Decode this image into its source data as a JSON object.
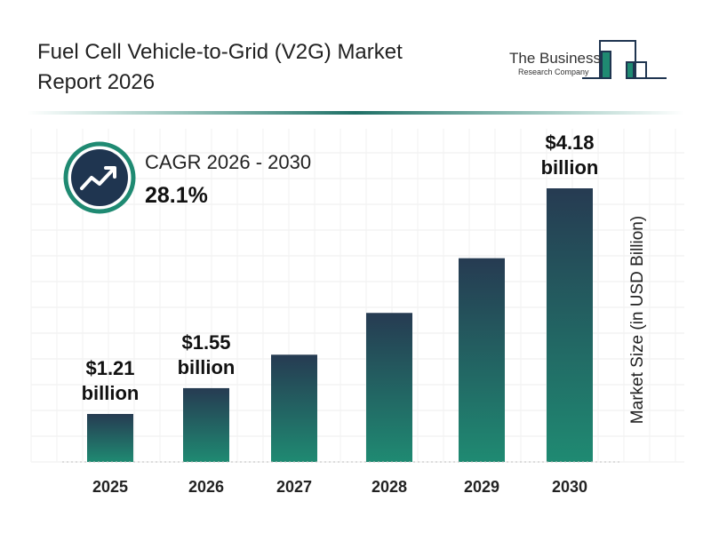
{
  "header": {
    "title_line1": "Fuel Cell Vehicle-to-Grid (V2G) Market",
    "title_line2": "Report 2026"
  },
  "logo": {
    "line1": "The Business",
    "line2": "Research Company"
  },
  "cagr": {
    "label": "CAGR 2026 - 2030",
    "value": "28.1%",
    "icon": "trending-up-icon"
  },
  "colors": {
    "bar_top": "#263b52",
    "bar_bottom": "#1f8a72",
    "accent": "#1f8a72",
    "dark": "#1f3550"
  },
  "chart_data": {
    "type": "bar",
    "categories": [
      "2025",
      "2026",
      "2027",
      "2028",
      "2029",
      "2030"
    ],
    "values": [
      1.21,
      1.55,
      1.99,
      2.54,
      3.26,
      4.18
    ],
    "data_labels": [
      [
        "$1.21",
        "billion"
      ],
      [
        "$1.55",
        "billion"
      ],
      null,
      null,
      null,
      [
        "$4.18",
        "billion"
      ]
    ],
    "title": "Fuel Cell Vehicle-to-Grid (V2G) Market Report 2026",
    "xlabel": "",
    "ylabel": "Market Size (in USD Billion)",
    "grid": true
  }
}
